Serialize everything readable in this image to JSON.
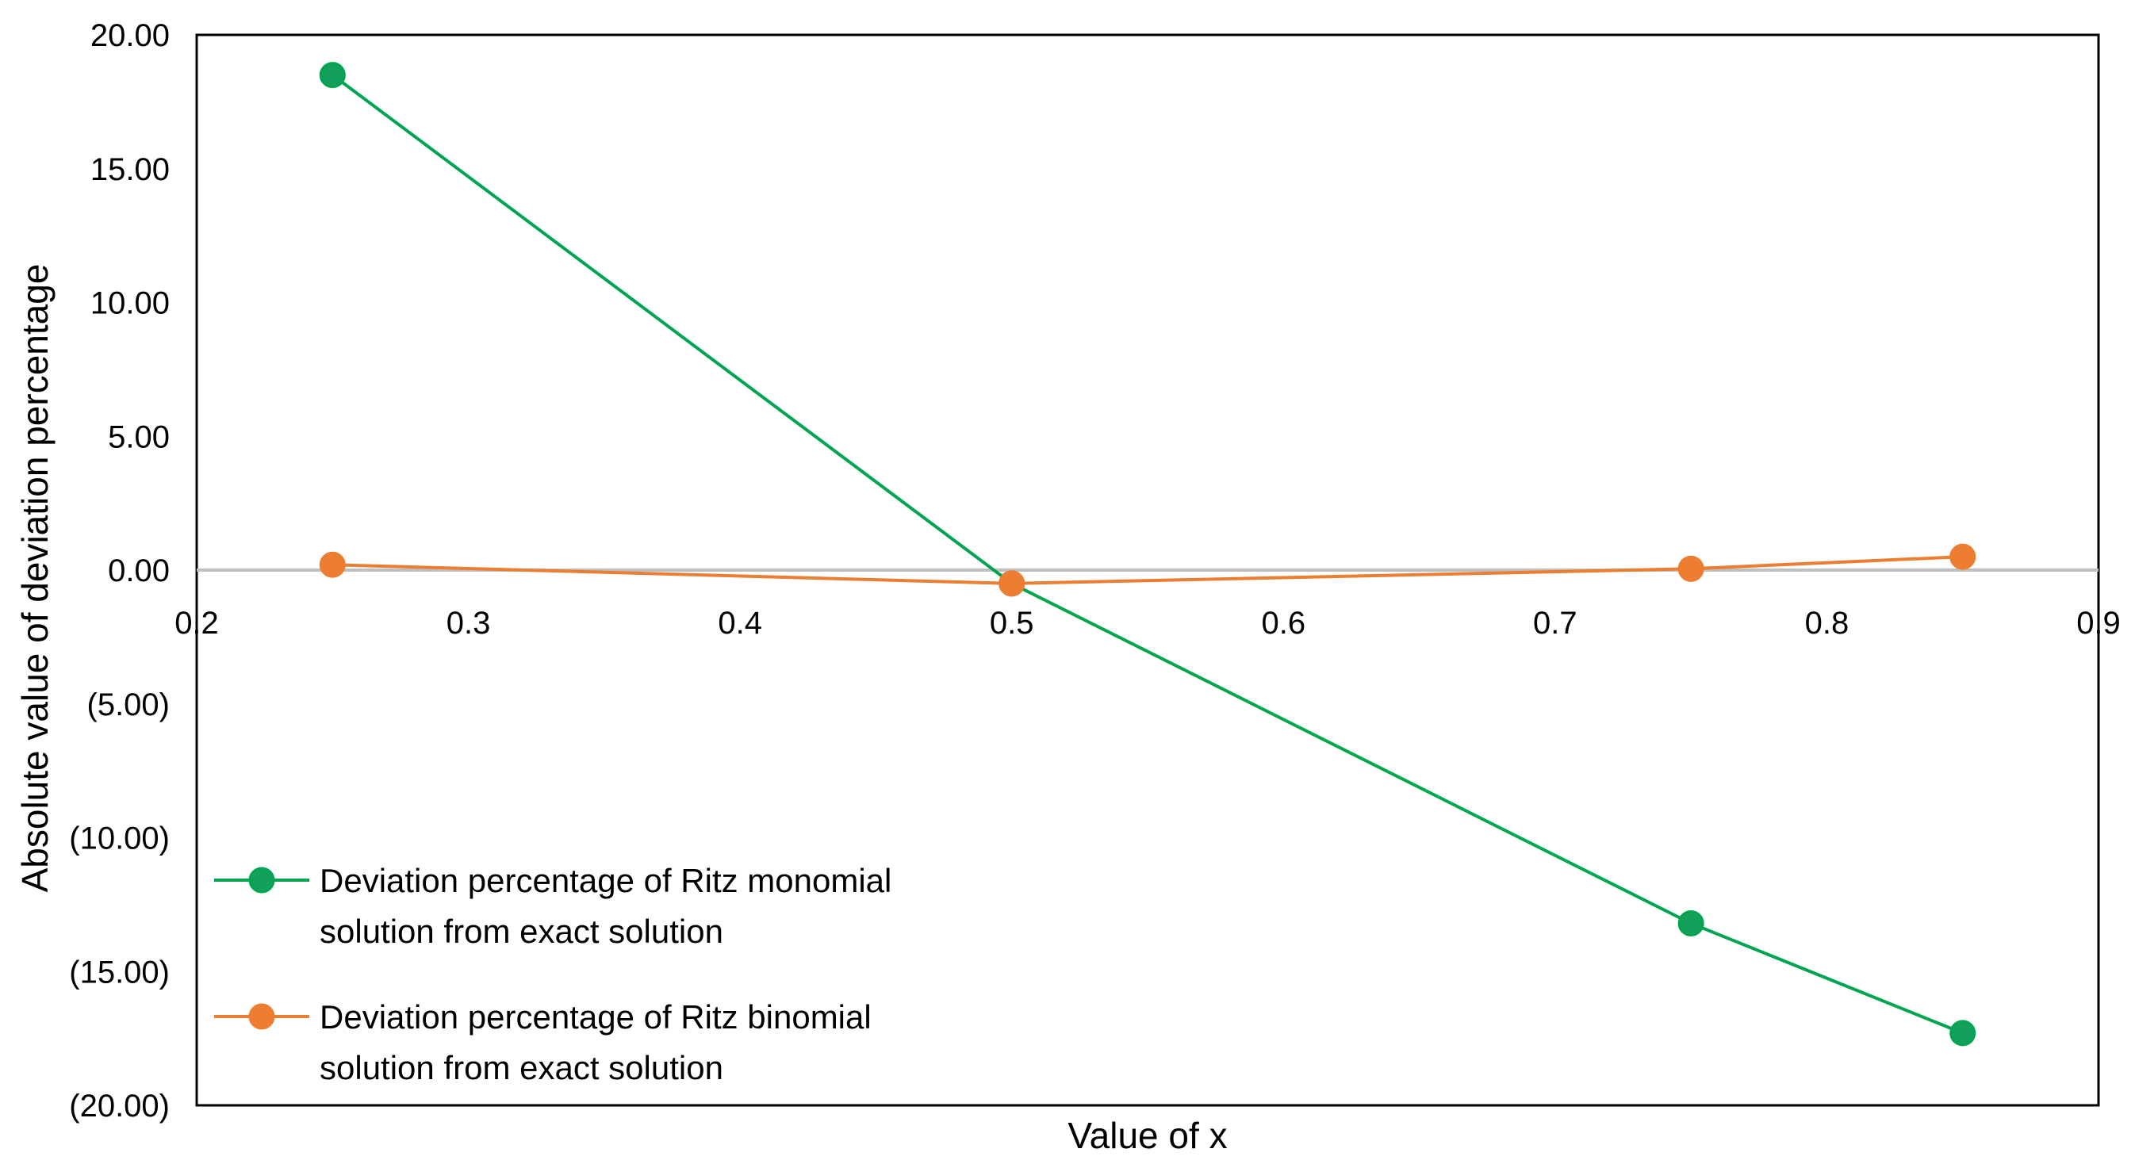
{
  "chart_data": {
    "type": "line",
    "title": "",
    "xlabel": "Value of  x",
    "ylabel": "Absolute value of deviation percentage",
    "xlim": [
      0.2,
      0.9
    ],
    "ylim": [
      -20,
      20
    ],
    "x_ticks": [
      0.2,
      0.3,
      0.4,
      0.5,
      0.6,
      0.7,
      0.8,
      0.9
    ],
    "x_tick_labels": [
      "0.2",
      "0.3",
      "0.4",
      "0.5",
      "0.6",
      "0.7",
      "0.8",
      "0.9"
    ],
    "y_ticks": [
      20,
      15,
      10,
      5,
      0,
      -5,
      -10,
      -15,
      -20
    ],
    "y_tick_labels": [
      "20.00",
      "15.00",
      "10.00",
      "5.00",
      "0.00",
      "(5.00)",
      "(10.00)",
      "(15.00)",
      "(20.00)"
    ],
    "grid": false,
    "zero_line": true,
    "legend_position": "bottom-left",
    "series": [
      {
        "name": "Deviation percentage of Ritz monomial solution from exact solution",
        "legend_lines": [
          "Deviation percentage of Ritz monomial",
          "solution from exact solution"
        ],
        "color": "#00a550",
        "marker_color": "#13a05a",
        "x": [
          0.25,
          0.5,
          0.75,
          0.85
        ],
        "y": [
          18.5,
          -0.5,
          -13.2,
          -17.3
        ]
      },
      {
        "name": "Deviation percentage of Ritz binomial solution from exact solution",
        "legend_lines": [
          "Deviation percentage of Ritz binomial",
          "solution from exact solution"
        ],
        "color": "#ed7d31",
        "marker_color": "#ed7d31",
        "x": [
          0.25,
          0.5,
          0.75,
          0.85
        ],
        "y": [
          0.2,
          -0.5,
          0.05,
          0.5
        ]
      }
    ],
    "colors": {
      "axis": "#000000",
      "zero_line": "#bfbfbf",
      "background": "#ffffff"
    }
  }
}
